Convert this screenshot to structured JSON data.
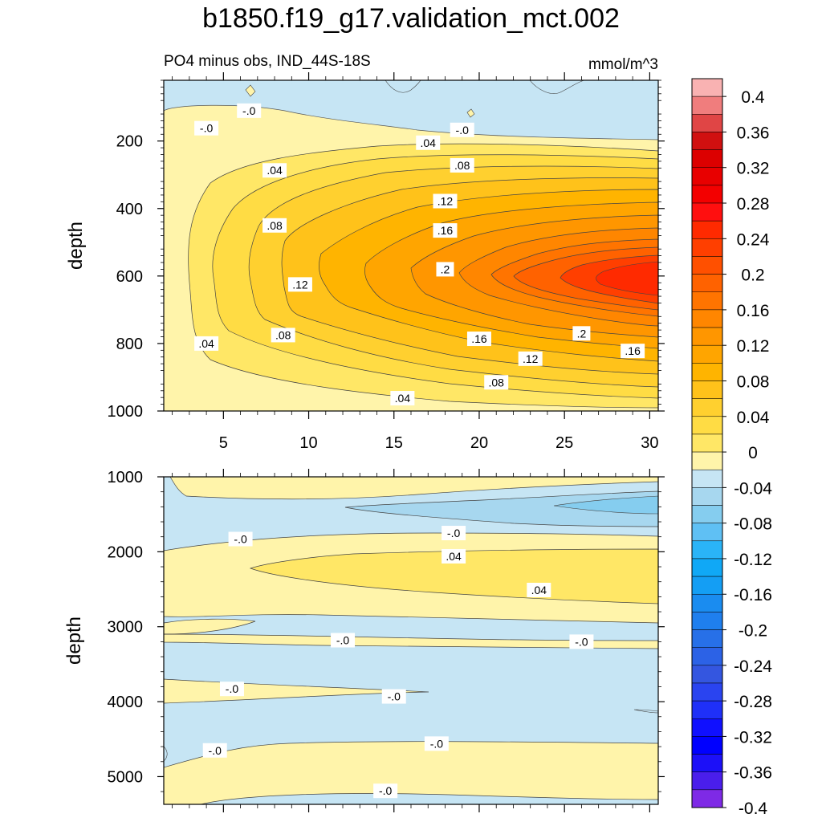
{
  "title": "b1850.f19_g17.validation_mct.002",
  "chart_data": {
    "type": "contour",
    "title": "b1850.f19_g17.validation_mct.002",
    "subtitle_left": "PO4 minus obs, IND_44S-18S",
    "units": "mmol/m^3",
    "ylabel": "depth",
    "upper_panel": {
      "xlim": [
        1.5,
        30.5
      ],
      "ylim": [
        1000,
        20
      ],
      "xticks": [
        5,
        10,
        15,
        20,
        25,
        30
      ],
      "yticks": [
        200,
        400,
        600,
        800,
        1000
      ],
      "contour_labels": [
        {
          "text": "-.0",
          "x": 6.5,
          "y": 110
        },
        {
          "text": "-.0",
          "x": 4.0,
          "y": 162
        },
        {
          "text": "-.0",
          "x": 19.0,
          "y": 167
        },
        {
          "text": ".04",
          "x": 17.0,
          "y": 205
        },
        {
          "text": ".04",
          "x": 8.0,
          "y": 287
        },
        {
          "text": ".08",
          "x": 19.0,
          "y": 272
        },
        {
          "text": ".12",
          "x": 18.0,
          "y": 378
        },
        {
          "text": ".08",
          "x": 8.0,
          "y": 450
        },
        {
          "text": ".16",
          "x": 18.0,
          "y": 465
        },
        {
          "text": ".2",
          "x": 18.0,
          "y": 580
        },
        {
          "text": ".12",
          "x": 9.5,
          "y": 625
        },
        {
          "text": ".08",
          "x": 8.5,
          "y": 775
        },
        {
          "text": ".04",
          "x": 4.0,
          "y": 800
        },
        {
          "text": ".16",
          "x": 20.0,
          "y": 786
        },
        {
          "text": ".2",
          "x": 26.0,
          "y": 770
        },
        {
          "text": ".16",
          "x": 29.0,
          "y": 822
        },
        {
          "text": ".12",
          "x": 23.0,
          "y": 845
        },
        {
          "text": ".08",
          "x": 21.0,
          "y": 915
        },
        {
          "text": ".04",
          "x": 15.5,
          "y": 962
        }
      ]
    },
    "lower_panel": {
      "xlim": [
        1.5,
        30.5
      ],
      "ylim": [
        5370,
        1000
      ],
      "yticks": [
        1000,
        2000,
        3000,
        4000,
        5000
      ],
      "contour_labels": [
        {
          "text": "-.0",
          "x": 18.5,
          "y": 1750
        },
        {
          "text": "-.0",
          "x": 6.0,
          "y": 1830
        },
        {
          "text": ".04",
          "x": 18.5,
          "y": 2060
        },
        {
          "text": ".04",
          "x": 23.5,
          "y": 2510
        },
        {
          "text": "-.0",
          "x": 12.0,
          "y": 3180
        },
        {
          "text": "-.0",
          "x": 26.0,
          "y": 3200
        },
        {
          "text": "-.0",
          "x": 5.5,
          "y": 3830
        },
        {
          "text": "-.0",
          "x": 15.0,
          "y": 3930
        },
        {
          "text": "-.0",
          "x": 17.5,
          "y": 4560
        },
        {
          "text": "-.0",
          "x": 4.5,
          "y": 4650
        },
        {
          "text": "-.0",
          "x": 14.5,
          "y": 5190
        }
      ]
    },
    "colorbar": {
      "levels": [
        -0.42,
        -0.4,
        -0.38,
        -0.36,
        -0.34,
        -0.32,
        -0.3,
        -0.28,
        -0.26,
        -0.24,
        -0.22,
        -0.2,
        -0.18,
        -0.16,
        -0.14,
        -0.12,
        -0.1,
        -0.08,
        -0.06,
        -0.04,
        -0.02,
        0,
        0.02,
        0.04,
        0.06,
        0.08,
        0.1,
        0.12,
        0.14,
        0.16,
        0.18,
        0.2,
        0.22,
        0.24,
        0.26,
        0.28,
        0.3,
        0.32,
        0.34,
        0.36,
        0.38,
        0.4,
        0.42
      ],
      "tick_labels": [
        "0.4",
        "0.36",
        "0.32",
        "0.28",
        "0.24",
        "0.2",
        "0.16",
        "0.12",
        "0.08",
        "0.04",
        "0",
        "-0.04",
        "-0.08",
        "-0.12",
        "-0.16",
        "-0.2",
        "-0.24",
        "-0.28",
        "-0.32",
        "-0.36",
        "-0.4"
      ],
      "colors_top_to_bottom": [
        "#f9b2b2",
        "#f07d7d",
        "#e04545",
        "#d01010",
        "#dc0000",
        "#e80000",
        "#f30000",
        "#ff0f0f",
        "#ff2a00",
        "#ff3f00",
        "#ff5000",
        "#ff6200",
        "#ff7400",
        "#ff8600",
        "#ff9600",
        "#ffa500",
        "#ffb400",
        "#ffc21a",
        "#ffd02f",
        "#ffdc44",
        "#ffe766",
        "#fff4aa",
        "#c6e5f4",
        "#a7d7ef",
        "#85cdef",
        "#5fc0f4",
        "#2ab4f8",
        "#10a8f6",
        "#149ef4",
        "#1a8cf0",
        "#1f7fee",
        "#2770e8",
        "#2c62e6",
        "#3456e0",
        "#2a44f0",
        "#1f30f8",
        "#1010ff",
        "#0000ff",
        "#1c10f8",
        "#4a1eeb",
        "#7e2ae6"
      ]
    },
    "palette": {
      "neg": "#c6e5f4",
      "zero_pos": "#fff4aa"
    }
  }
}
